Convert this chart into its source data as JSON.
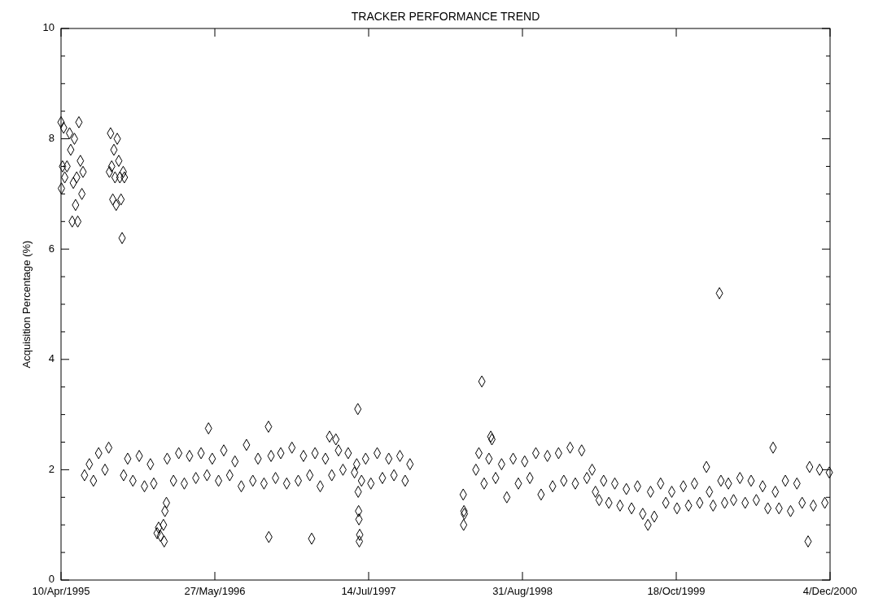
{
  "chart_data": {
    "type": "scatter",
    "title": "TRACKER PERFORMANCE TREND",
    "ylabel": "Acquisition Percentage (%)",
    "marker": "diamond",
    "xlim": [
      "1995-04-10",
      "2000-12-04"
    ],
    "xticks": [
      {
        "value": "1995-04-10",
        "label": "10/Apr/1995"
      },
      {
        "value": "1996-05-27",
        "label": "27/May/1996"
      },
      {
        "value": "1997-07-14",
        "label": "14/Jul/1997"
      },
      {
        "value": "1998-08-31",
        "label": "31/Aug/1998"
      },
      {
        "value": "1999-10-18",
        "label": "18/Oct/1999"
      },
      {
        "value": "2000-12-04",
        "label": "4/Dec/2000"
      }
    ],
    "ylim": [
      0,
      10
    ],
    "yticks": [
      0,
      {
        "value": 0.5,
        "label": null
      },
      {
        "value": 1,
        "label": null
      },
      {
        "value": 1.5,
        "label": null
      },
      2,
      {
        "value": 2.5,
        "label": null
      },
      {
        "value": 3,
        "label": null
      },
      {
        "value": 3.5,
        "label": null
      },
      4,
      {
        "value": 4.5,
        "label": null
      },
      {
        "value": 5,
        "label": null
      },
      {
        "value": 5.5,
        "label": null
      },
      6,
      {
        "value": 6.5,
        "label": null
      },
      {
        "value": 7,
        "label": null
      },
      {
        "value": 7.5,
        "label": null
      },
      8,
      {
        "value": 8.5,
        "label": null
      },
      {
        "value": 9,
        "label": null
      },
      {
        "value": 9.5,
        "label": null
      },
      10
    ],
    "series": [
      {
        "color": "#000000",
        "x": [
          "1995-04-10",
          "1995-04-11",
          "1995-04-14",
          "1995-04-17",
          "1995-04-20",
          "1995-04-26",
          "1995-05-03",
          "1995-05-06",
          "1995-05-10",
          "1995-05-13",
          "1995-05-16",
          "1995-05-19",
          "1995-05-22",
          "1995-05-25",
          "1995-05-28",
          "1995-06-01",
          "1995-06-05",
          "1995-06-08",
          "1995-08-18",
          "1995-08-21",
          "1995-08-24",
          "1995-08-27",
          "1995-08-30",
          "1995-09-02",
          "1995-09-05",
          "1995-09-08",
          "1995-09-12",
          "1995-09-15",
          "1995-09-18",
          "1995-09-21",
          "1995-09-24",
          "1995-09-27",
          "1995-06-12",
          "1995-06-25",
          "1995-07-06",
          "1995-07-20",
          "1995-08-06",
          "1995-08-16",
          "1995-09-25",
          "1995-10-06",
          "1995-10-20",
          "1995-11-06",
          "1995-11-20",
          "1995-12-06",
          "1995-12-15",
          "1995-12-24",
          "1995-12-28",
          "1996-01-02",
          "1996-01-10",
          "1996-01-12",
          "1996-01-14",
          "1996-01-18",
          "1996-01-20",
          "1996-02-06",
          "1996-02-20",
          "1996-03-06",
          "1996-03-20",
          "1996-04-06",
          "1996-04-20",
          "1996-05-06",
          "1996-05-10",
          "1996-05-20",
          "1996-06-06",
          "1996-06-20",
          "1996-07-06",
          "1996-07-20",
          "1996-08-06",
          "1996-08-20",
          "1996-09-06",
          "1996-09-20",
          "1996-10-06",
          "1996-10-18",
          "1996-10-19",
          "1996-10-25",
          "1996-11-06",
          "1996-11-20",
          "1996-12-06",
          "1996-12-20",
          "1997-01-06",
          "1997-01-20",
          "1997-02-06",
          "1997-02-11",
          "1997-02-20",
          "1997-03-06",
          "1997-03-20",
          "1997-03-31",
          "1997-04-06",
          "1997-04-17",
          "1997-04-24",
          "1997-05-06",
          "1997-05-20",
          "1997-06-06",
          "1997-06-12",
          "1997-06-15",
          "1997-06-16",
          "1997-06-17",
          "1997-06-18",
          "1997-06-19",
          "1997-06-20",
          "1997-06-25",
          "1997-07-06",
          "1997-07-20",
          "1997-08-06",
          "1997-08-20",
          "1997-09-06",
          "1997-09-20",
          "1997-10-06",
          "1997-10-20",
          "1997-11-02",
          "1998-03-25",
          "1998-03-27",
          "1998-03-28",
          "1998-03-26",
          "1998-04-28",
          "1998-05-06",
          "1998-05-14",
          "1998-05-20",
          "1998-06-02",
          "1998-06-07",
          "1998-06-10",
          "1998-06-20",
          "1998-07-06",
          "1998-07-20",
          "1998-08-06",
          "1998-08-20",
          "1998-09-06",
          "1998-09-20",
          "1998-10-06",
          "1998-10-20",
          "1998-11-06",
          "1998-11-20",
          "1998-12-06",
          "1998-12-20",
          "1999-01-06",
          "1999-01-20",
          "1999-02-06",
          "1999-02-20",
          "1999-03-06",
          "1999-03-15",
          "1999-03-25",
          "1999-04-06",
          "1999-04-20",
          "1999-05-06",
          "1999-05-20",
          "1999-06-06",
          "1999-06-20",
          "1999-07-06",
          "1999-07-20",
          "1999-08-03",
          "1999-08-10",
          "1999-08-20",
          "1999-09-06",
          "1999-09-20",
          "1999-10-06",
          "1999-10-20",
          "1999-11-06",
          "1999-11-20",
          "1999-12-06",
          "1999-12-20",
          "2000-01-07",
          "2000-01-15",
          "2000-01-25",
          "2000-02-11",
          "2000-02-15",
          "2000-02-25",
          "2000-03-06",
          "2000-03-20",
          "2000-04-06",
          "2000-04-20",
          "2000-05-06",
          "2000-05-20",
          "2000-06-06",
          "2000-06-20",
          "2000-07-04",
          "2000-07-10",
          "2000-07-20",
          "2000-08-06",
          "2000-08-20",
          "2000-09-06",
          "2000-09-20",
          "2000-10-06",
          "2000-10-10",
          "2000-10-20",
          "2000-11-06",
          "2000-11-20",
          "2000-12-02"
        ],
        "values": [
          8.3,
          7.1,
          7.5,
          8.2,
          7.3,
          7.5,
          8.1,
          7.8,
          6.5,
          7.2,
          8.0,
          6.8,
          7.3,
          6.5,
          8.3,
          7.6,
          7.0,
          7.4,
          7.4,
          8.1,
          7.5,
          6.9,
          7.8,
          7.3,
          6.8,
          8.0,
          7.6,
          7.3,
          6.9,
          6.2,
          7.4,
          7.3,
          1.9,
          2.1,
          1.8,
          2.3,
          2.0,
          2.4,
          1.9,
          2.2,
          1.8,
          2.25,
          1.7,
          2.1,
          1.75,
          0.85,
          0.95,
          0.8,
          1.0,
          0.7,
          1.25,
          1.4,
          2.2,
          1.8,
          2.3,
          1.75,
          2.25,
          1.85,
          2.3,
          1.9,
          2.75,
          2.2,
          1.8,
          2.35,
          1.9,
          2.15,
          1.7,
          2.45,
          1.8,
          2.2,
          1.75,
          2.78,
          0.78,
          2.25,
          1.85,
          2.3,
          1.75,
          2.4,
          1.8,
          2.25,
          1.9,
          0.75,
          2.3,
          1.7,
          2.2,
          2.6,
          1.9,
          2.55,
          2.35,
          2.0,
          2.3,
          1.95,
          2.1,
          3.1,
          1.6,
          1.25,
          1.1,
          0.7,
          0.82,
          1.8,
          2.2,
          1.75,
          2.3,
          1.85,
          2.2,
          1.9,
          2.25,
          1.8,
          2.1,
          1.55,
          1.25,
          1.2,
          1.0,
          2.0,
          2.3,
          3.6,
          1.75,
          2.2,
          2.6,
          2.55,
          1.85,
          2.1,
          1.5,
          2.2,
          1.75,
          2.15,
          1.85,
          2.3,
          1.55,
          2.25,
          1.7,
          2.3,
          1.8,
          2.4,
          1.75,
          2.35,
          1.85,
          2.0,
          1.6,
          1.45,
          1.8,
          1.4,
          1.75,
          1.35,
          1.65,
          1.3,
          1.7,
          1.2,
          1.0,
          1.6,
          1.15,
          1.75,
          1.4,
          1.6,
          1.3,
          1.7,
          1.35,
          1.75,
          1.4,
          2.05,
          1.6,
          1.35,
          5.2,
          1.8,
          1.4,
          1.75,
          1.45,
          1.85,
          1.4,
          1.8,
          1.45,
          1.7,
          1.3,
          2.4,
          1.6,
          1.3,
          1.8,
          1.25,
          1.75,
          1.4,
          0.7,
          2.05,
          1.35,
          2.0,
          1.4,
          1.95
        ]
      }
    ]
  }
}
